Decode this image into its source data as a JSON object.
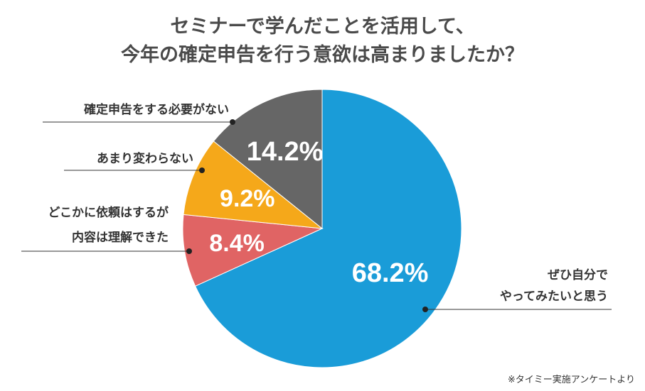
{
  "title_lines": [
    "セミナーで学んだことを活用して、",
    "今年の確定申告を行う意欲は高まりましたか？"
  ],
  "note": "※タイミー実施アンケートより",
  "chart_data": {
    "type": "pie",
    "title": "セミナーで学んだことを活用して、今年の確定申告を行う意欲は高まりましたか？",
    "start": "12 o'clock, clockwise",
    "slices": [
      {
        "label_lines": [
          "ぜひ自分で",
          "やってみたいと思う"
        ],
        "value": 68.2,
        "value_label": "68.2%",
        "color": "#1a9cd8"
      },
      {
        "label_lines": [
          "どこかに依頼はするが",
          "内容は理解できた"
        ],
        "value": 8.4,
        "value_label": "8.4%",
        "color": "#e06464"
      },
      {
        "label_lines": [
          "あまり変わらない"
        ],
        "value": 9.2,
        "value_label": "9.2%",
        "color": "#f5a81a"
      },
      {
        "label_lines": [
          "確定申告をする必要がない"
        ],
        "value": 14.2,
        "value_label": "14.2%",
        "color": "#666666"
      }
    ]
  }
}
